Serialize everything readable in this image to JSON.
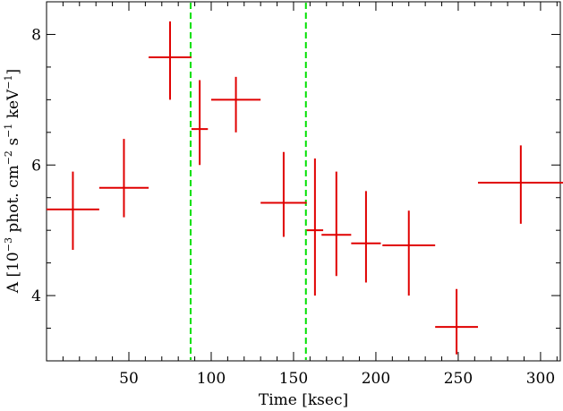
{
  "chart_data": {
    "type": "scatter",
    "title": "",
    "xlabel": "Time [ksec]",
    "ylabel": {
      "prefix": "A [10",
      "exp1": "−3",
      "mid1": " phot. cm",
      "exp2": "−2",
      "mid2": " s",
      "exp3": "−1",
      "mid3": " keV",
      "exp4": "−1",
      "suffix": "]"
    },
    "xlim": [
      0,
      312
    ],
    "ylim": [
      3.0,
      8.5
    ],
    "x_ticks": [
      50,
      100,
      150,
      200,
      250,
      300
    ],
    "y_ticks": [
      4,
      6,
      8
    ],
    "x_tick_labels": [
      "50",
      "100",
      "150",
      "200",
      "250",
      "300"
    ],
    "y_tick_labels": [
      "4",
      "6",
      "8"
    ],
    "x_minor_step": 10,
    "y_minor_step": 0.5,
    "series": [
      {
        "color": "#e00000",
        "points": [
          {
            "x": 16,
            "xerr": 16,
            "y": 5.32,
            "yerr_low": 0.62,
            "yerr_high": 0.58
          },
          {
            "x": 47,
            "xerr": 15,
            "y": 5.65,
            "yerr_low": 0.45,
            "yerr_high": 0.75
          },
          {
            "x": 75,
            "xerr": 13,
            "y": 7.65,
            "yerr_low": 0.65,
            "yerr_high": 0.55
          },
          {
            "x": 93,
            "xerr": 5,
            "y": 6.55,
            "yerr_low": 0.55,
            "yerr_high": 0.75
          },
          {
            "x": 115,
            "xerr": 15,
            "y": 7.0,
            "yerr_low": 0.5,
            "yerr_high": 0.35
          },
          {
            "x": 144,
            "xerr": 14,
            "y": 5.42,
            "yerr_low": 0.52,
            "yerr_high": 0.78
          },
          {
            "x": 163,
            "xerr": 5,
            "y": 5.0,
            "yerr_low": 1.0,
            "yerr_high": 1.1
          },
          {
            "x": 176,
            "xerr": 9,
            "y": 4.93,
            "yerr_low": 0.63,
            "yerr_high": 0.97
          },
          {
            "x": 194,
            "xerr": 9,
            "y": 4.8,
            "yerr_low": 0.6,
            "yerr_high": 0.8
          },
          {
            "x": 220,
            "xerr": 16,
            "y": 4.77,
            "yerr_low": 0.77,
            "yerr_high": 0.53
          },
          {
            "x": 249,
            "xerr": 13,
            "y": 3.52,
            "yerr_low": 0.42,
            "yerr_high": 0.58
          },
          {
            "x": 288,
            "xerr": 26,
            "y": 5.73,
            "yerr_low": 0.63,
            "yerr_high": 0.57
          }
        ]
      }
    ],
    "vlines": [
      {
        "x": 87.5,
        "color": "#00e000",
        "style": "dashed"
      },
      {
        "x": 157.5,
        "color": "#00e000",
        "style": "dashed"
      }
    ],
    "grid": false
  }
}
